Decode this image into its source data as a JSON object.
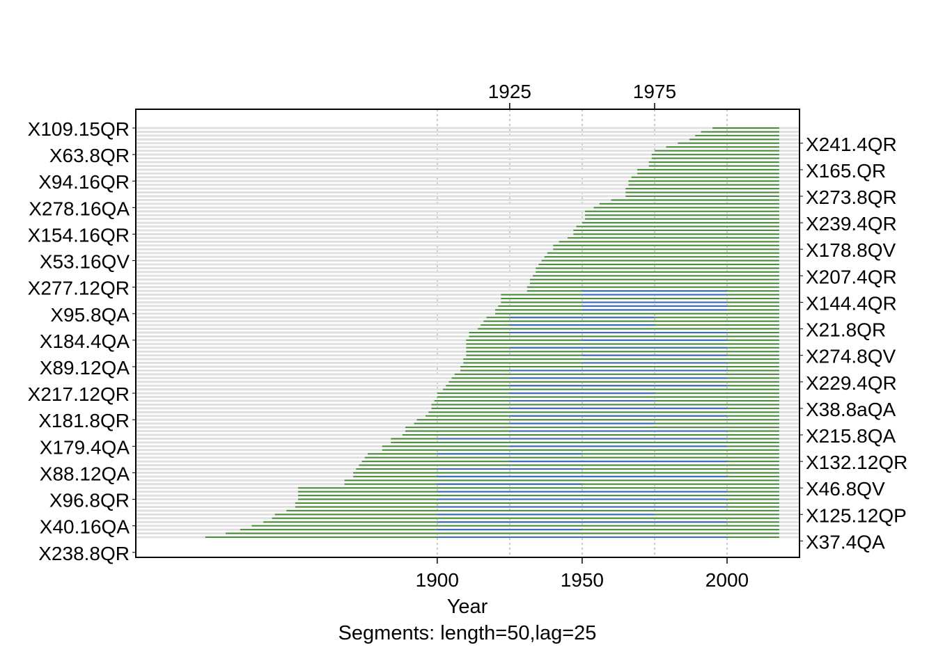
{
  "chart_data": {
    "type": "segment-plot",
    "title": "",
    "xlabel": "Year",
    "subtitle": "Segments: length=50,lag=25",
    "xlim": [
      1796,
      2025
    ],
    "data_end": 2018,
    "segment_length": 50,
    "segment_lag": 25,
    "bottom_ticks": [
      1900,
      1950,
      2000
    ],
    "top_ticks": [
      1925,
      1975
    ],
    "colors": {
      "background": "#e0e0e0",
      "good": "#4a8e3a",
      "flagged": "#3d6cc7",
      "grid": "#bbbbbb"
    },
    "left_labels": [
      "X109.15QR",
      "X63.8QR",
      "X94.16QR",
      "X278.16QA",
      "X154.16QR",
      "X53.16QV",
      "X277.12QR",
      "X95.8QA",
      "X184.4QA",
      "X89.12QA",
      "X217.12QR",
      "X181.8QR",
      "X179.4QA",
      "X88.12QA",
      "X96.8QR",
      "X40.16QA",
      "X238.8QR"
    ],
    "right_labels": [
      "X241.4QR",
      "X165.QR",
      "X273.8QR",
      "X239.4QR",
      "X178.8QV",
      "X207.4QR",
      "X144.4QR",
      "X21.8QR",
      "X274.8QV",
      "X229.4QR",
      "X38.8aQA",
      "X215.8QA",
      "X132.12QR",
      "X46.8QV",
      "X125.12QP",
      "X37.4QA"
    ],
    "series_start_years": [
      1995,
      1991,
      1989,
      1987,
      1983,
      1979,
      1975,
      1974,
      1974,
      1973,
      1973,
      1969,
      1969,
      1967,
      1966,
      1966,
      1965,
      1965,
      1965,
      1960,
      1956,
      1954,
      1951,
      1951,
      1951,
      1950,
      1948,
      1947,
      1947,
      1945,
      1942,
      1940,
      1940,
      1938,
      1937,
      1936,
      1935,
      1934,
      1934,
      1933,
      1932,
      1932,
      1931,
      1931,
      1922,
      1922,
      1922,
      1921,
      1920,
      1920,
      1917,
      1916,
      1915,
      1914,
      1911,
      1911,
      1910,
      1910,
      1910,
      1910,
      1910,
      1909,
      1909,
      1908,
      1908,
      1906,
      1905,
      1904,
      1903,
      1902,
      1900,
      1900,
      1899,
      1898,
      1898,
      1897,
      1896,
      1893,
      1892,
      1889,
      1889,
      1888,
      1884,
      1884,
      1881,
      1881,
      1876,
      1875,
      1874,
      1873,
      1872,
      1871,
      1871,
      1868,
      1868,
      1852,
      1852,
      1852,
      1852,
      1851,
      1851,
      1848,
      1844,
      1843,
      1840,
      1836,
      1832,
      1827,
      1820
    ],
    "flagged_segments": [
      [
        1950,
        2000
      ],
      [
        1950,
        2000
      ],
      [
        1950,
        2000
      ],
      [
        1950,
        2000
      ],
      [
        1950,
        2000
      ],
      [
        1925,
        1975
      ],
      [
        1925,
        1975
      ],
      [
        1925,
        2000
      ],
      [
        1950,
        2000
      ],
      [
        1925,
        2000
      ],
      [
        1950,
        2000
      ],
      [
        1950,
        2000
      ],
      [
        1925,
        2000
      ],
      [
        1925,
        2000
      ],
      [
        1925,
        2000
      ],
      [
        1925,
        1975
      ],
      [
        1925,
        1975
      ],
      [
        1925,
        2000
      ],
      [
        1925,
        2000
      ],
      [
        1925,
        1975
      ],
      [
        1925,
        2000
      ],
      [
        1900,
        2000
      ],
      [
        1925,
        2000
      ],
      [
        1900,
        1950
      ],
      [
        1925,
        2000
      ],
      [
        1900,
        1950
      ],
      [
        1900,
        2000
      ],
      [
        1900,
        1950
      ],
      [
        1900,
        2000
      ],
      [
        1900,
        2000
      ],
      [
        1900,
        2000
      ],
      [
        1900,
        1975
      ],
      [
        1900,
        2000
      ],
      [
        1900,
        1950
      ],
      [
        1900,
        2000
      ]
    ],
    "flagged_rows": [
      43,
      44,
      46,
      47,
      48,
      50,
      52,
      54,
      56,
      58,
      60,
      62,
      64,
      66,
      68,
      70,
      72,
      74,
      76,
      78,
      80,
      82,
      84,
      86,
      88,
      90,
      92,
      94,
      96,
      98,
      100,
      102,
      104,
      106,
      108
    ]
  }
}
